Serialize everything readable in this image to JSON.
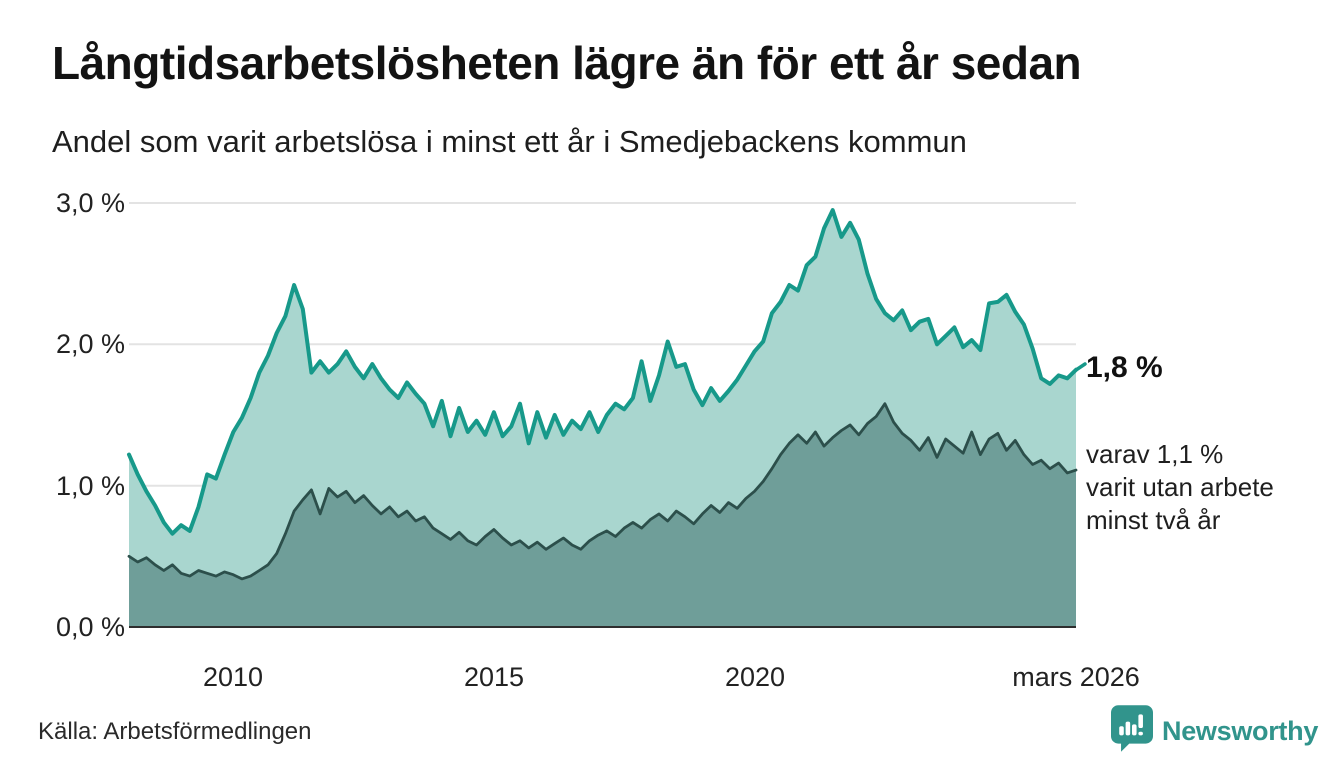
{
  "chart_data": {
    "type": "area",
    "title": "Långtidsarbetslösheten lägre än för ett år sedan",
    "subtitle": "Andel som varit arbetslösa i minst ett år i Smedjebackens kommun",
    "ylim": [
      0,
      3.0
    ],
    "x_start_year": 2008.0,
    "x_end_year": 2026.17,
    "x_step_years": 0.1667,
    "grid": "horizontal",
    "y_ticks": [
      {
        "value": 3.0,
        "label": "3,0 %"
      },
      {
        "value": 2.0,
        "label": "2,0 %"
      },
      {
        "value": 1.0,
        "label": "1,0 %"
      },
      {
        "value": 0.0,
        "label": "0,0 %"
      }
    ],
    "x_ticks": [
      {
        "year": 2010,
        "label": "2010"
      },
      {
        "year": 2015,
        "label": "2015"
      },
      {
        "year": 2020,
        "label": "2020"
      },
      {
        "year": 2026.17,
        "label": "mars 2026"
      }
    ],
    "series": [
      {
        "name": "Arbetslösa minst ett år",
        "color": "#17998a",
        "fill": "#a9d6cf",
        "end_value_label": "1,8 %",
        "values": [
          1.22,
          1.08,
          0.96,
          0.86,
          0.74,
          0.66,
          0.72,
          0.68,
          0.85,
          1.08,
          1.05,
          1.22,
          1.38,
          1.48,
          1.62,
          1.8,
          1.92,
          2.08,
          2.2,
          2.42,
          2.25,
          1.8,
          1.88,
          1.8,
          1.86,
          1.95,
          1.84,
          1.76,
          1.86,
          1.76,
          1.68,
          1.62,
          1.73,
          1.65,
          1.58,
          1.42,
          1.6,
          1.35,
          1.55,
          1.38,
          1.46,
          1.36,
          1.52,
          1.35,
          1.42,
          1.58,
          1.3,
          1.52,
          1.34,
          1.5,
          1.36,
          1.46,
          1.4,
          1.52,
          1.38,
          1.5,
          1.58,
          1.54,
          1.62,
          1.88,
          1.6,
          1.78,
          2.02,
          1.84,
          1.86,
          1.68,
          1.57,
          1.69,
          1.6,
          1.67,
          1.75,
          1.85,
          1.95,
          2.02,
          2.22,
          2.3,
          2.42,
          2.38,
          2.56,
          2.62,
          2.82,
          2.95,
          2.76,
          2.86,
          2.74,
          2.5,
          2.32,
          2.22,
          2.17,
          2.24,
          2.1,
          2.16,
          2.18,
          2.0,
          2.06,
          2.12,
          1.98,
          2.03,
          1.96,
          2.29,
          2.3,
          2.35,
          2.23,
          2.14,
          1.97,
          1.76,
          1.72,
          1.78,
          1.76,
          1.82
        ]
      },
      {
        "name": "Varav arbetslösa minst två år",
        "color": "#2c4f4b",
        "fill": "#6f9e99",
        "end_value_label": "1,1 %",
        "values": [
          0.5,
          0.46,
          0.49,
          0.44,
          0.4,
          0.44,
          0.38,
          0.36,
          0.4,
          0.38,
          0.36,
          0.39,
          0.37,
          0.34,
          0.36,
          0.4,
          0.44,
          0.52,
          0.66,
          0.82,
          0.9,
          0.97,
          0.8,
          0.98,
          0.92,
          0.96,
          0.88,
          0.93,
          0.86,
          0.8,
          0.85,
          0.78,
          0.82,
          0.75,
          0.78,
          0.7,
          0.66,
          0.62,
          0.67,
          0.61,
          0.58,
          0.64,
          0.69,
          0.63,
          0.58,
          0.61,
          0.56,
          0.6,
          0.55,
          0.59,
          0.63,
          0.58,
          0.55,
          0.61,
          0.65,
          0.68,
          0.64,
          0.7,
          0.74,
          0.7,
          0.76,
          0.8,
          0.75,
          0.82,
          0.78,
          0.73,
          0.8,
          0.86,
          0.81,
          0.88,
          0.84,
          0.91,
          0.96,
          1.03,
          1.12,
          1.22,
          1.3,
          1.36,
          1.3,
          1.38,
          1.28,
          1.34,
          1.39,
          1.43,
          1.36,
          1.44,
          1.49,
          1.58,
          1.45,
          1.37,
          1.32,
          1.25,
          1.34,
          1.2,
          1.33,
          1.28,
          1.23,
          1.38,
          1.22,
          1.33,
          1.37,
          1.25,
          1.32,
          1.22,
          1.15,
          1.18,
          1.12,
          1.16,
          1.09,
          1.11
        ]
      }
    ],
    "annotation": {
      "primary": "1,8 %",
      "secondary_lines": [
        "varav 1,1 %",
        "varit utan arbete",
        "minst två år"
      ]
    }
  },
  "footer": {
    "source": "Källa: Arbetsförmedlingen",
    "brand": "Newsworthy",
    "brand_color": "#31948c"
  }
}
